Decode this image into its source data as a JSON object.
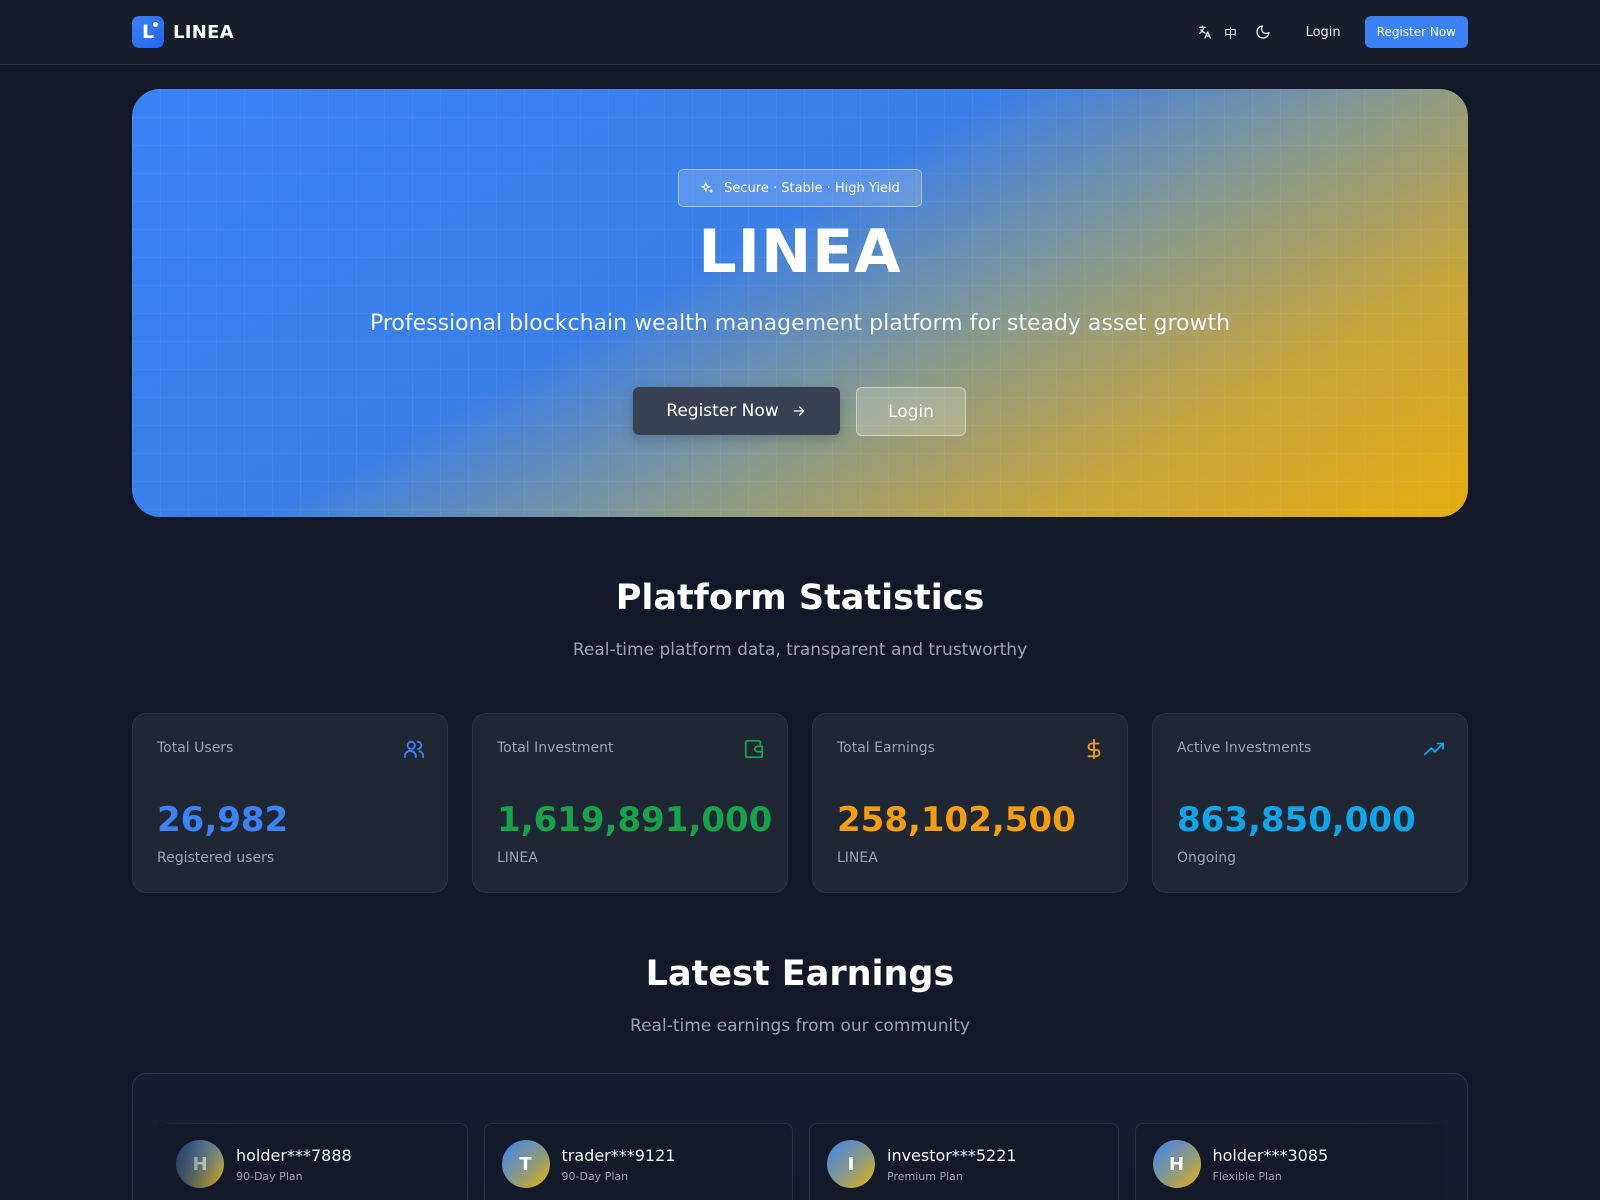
{
  "header": {
    "brand": "LINEA",
    "logo_letter": "L",
    "language_toggle_label": "中",
    "login_label": "Login",
    "register_label": "Register Now"
  },
  "hero": {
    "badge": "Secure · Stable · High Yield",
    "title": "LINEA",
    "subtitle": "Professional blockchain wealth management platform for steady asset growth",
    "register_label": "Register Now",
    "login_label": "Login"
  },
  "stats_section": {
    "title": "Platform Statistics",
    "subtitle": "Real-time platform data, transparent and trustworthy",
    "cards": [
      {
        "label": "Total Users",
        "value": "26,982",
        "caption": "Registered users",
        "icon": "users-icon",
        "color": "#3b82f6"
      },
      {
        "label": "Total Investment",
        "value": "1,619,891,000",
        "caption": "LINEA",
        "icon": "wallet-icon",
        "color": "#16a34a"
      },
      {
        "label": "Total Earnings",
        "value": "258,102,500",
        "caption": "LINEA",
        "icon": "dollar-icon",
        "color": "#f59e0b"
      },
      {
        "label": "Active Investments",
        "value": "863,850,000",
        "caption": "Ongoing",
        "icon": "trending-up-icon",
        "color": "#0ea5e9"
      }
    ]
  },
  "earnings_section": {
    "title": "Latest Earnings",
    "subtitle": "Real-time earnings from our community",
    "items": [
      {
        "initial": "H",
        "name": "holder***7888",
        "plan": "90-Day Plan"
      },
      {
        "initial": "T",
        "name": "trader***9121",
        "plan": "90-Day Plan"
      },
      {
        "initial": "I",
        "name": "investor***5221",
        "plan": "Premium Plan"
      },
      {
        "initial": "H",
        "name": "holder***3085",
        "plan": "Flexible Plan"
      }
    ]
  }
}
